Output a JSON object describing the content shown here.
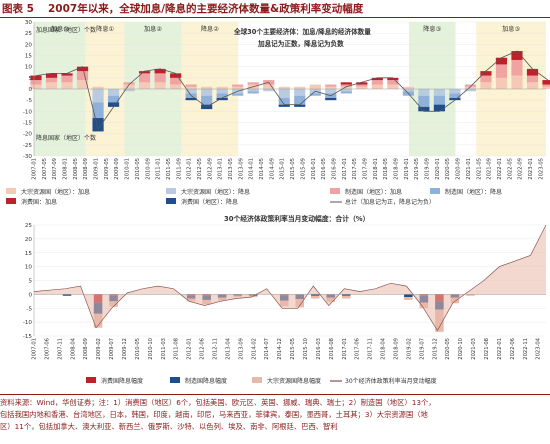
{
  "header": {
    "figure_no": "图表 5",
    "title": "2007年以来，全球加息/降息的主要经济体数量&政策利率变动幅度"
  },
  "source_note": [
    "资料来源：Wind，华创证券；注：1）消费国（地区）6个，包括美国、欧元区、英国、挪威、瑞典、瑞士；2）制造国（地区）13个，",
    "包括我国内地和香港、台湾地区，日本，韩国，印度，越南，印尼，马来西亚，菲律宾，泰国，墨西哥，土耳其；3）大宗资源国（地",
    "区）11个，包括加拿大、澳大利亚、新西兰、俄罗斯、沙特、以色列、埃及、南非、阿根廷、巴西、智利"
  ],
  "colors": {
    "shade_green": "#e4f2dc",
    "shade_yellow": "#fcf2d4",
    "hike_consumer": "#c0202a",
    "hike_manufacturing": "#f0a3a3",
    "hike_resource": "#f6c9b6",
    "cut_consumer": "#1f4e8c",
    "cut_manufacturing": "#8fb0d8",
    "cut_resource": "#b9cbe0",
    "net_line": "#555555",
    "bars_consumer": "#c0202a",
    "bars_manufacturing": "#1f4e8c",
    "bars_resource": "#e8b8a8",
    "policy_line": "#6b3030",
    "ann_text": "#8b1a1a"
  },
  "chart_data": [
    {
      "type": "bar",
      "subtype": "stacked-with-line",
      "x_range": [
        "2007-01",
        "2023-07"
      ],
      "x_ticks": [
        "2007-01",
        "2007-05",
        "2007-09",
        "2008-01",
        "2008-05",
        "2008-09",
        "2009-01",
        "2009-05",
        "2009-09",
        "2010-01",
        "2010-05",
        "2010-09",
        "2011-01",
        "2011-05",
        "2011-09",
        "2012-01",
        "2012-05",
        "2012-09",
        "2013-01",
        "2013-05",
        "2013-09",
        "2014-01",
        "2014-05",
        "2014-09",
        "2015-01",
        "2015-05",
        "2015-09",
        "2016-01",
        "2016-05",
        "2016-09",
        "2017-01",
        "2017-05",
        "2017-09",
        "2018-01",
        "2018-05",
        "2018-09",
        "2019-01",
        "2019-05",
        "2019-09",
        "2020-01",
        "2020-05",
        "2020-09",
        "2021-01",
        "2021-05",
        "2021-09",
        "2022-01",
        "2022-05",
        "2022-09",
        "2023-01",
        "2023-05"
      ],
      "y_ticks": [
        30,
        25,
        20,
        15,
        10,
        5,
        0,
        -5,
        -10,
        -15,
        -20,
        -25,
        -30
      ],
      "ylim": [
        -30,
        30
      ],
      "ylabel_top": "加息国家（地区）个数",
      "ylabel_bottom": "降息国家（地区）个数",
      "annotation": [
        "全球30个主要经济体：加息/降息的经济体数量",
        "加息记为正数，降息记为负数"
      ],
      "phases": [
        {
          "label": "加息①",
          "start": "2007-01",
          "end": "2008-09",
          "shade": "green"
        },
        {
          "label": "降息①",
          "start": "2008-09",
          "end": "2009-12",
          "shade": "yellow"
        },
        {
          "label": "加息②",
          "start": "2009-12",
          "end": "2011-10",
          "shade": "green"
        },
        {
          "label": "降息②",
          "start": "2011-10",
          "end": "2013-08",
          "shade": "yellow"
        },
        {
          "label": "降息③",
          "start": "2019-02",
          "end": "2020-08",
          "shade": "green"
        },
        {
          "label": "加息③",
          "start": "2021-04",
          "end": "2023-07",
          "shade": "yellow"
        }
      ],
      "series": [
        {
          "name": "大宗资源国（地区）：加息",
          "sample_dates": [
            "2007-01",
            "2007-07",
            "2008-01",
            "2008-07",
            "2009-01",
            "2009-07",
            "2010-01",
            "2010-07",
            "2011-01",
            "2011-07",
            "2012-01",
            "2012-07",
            "2013-01",
            "2013-07",
            "2014-01",
            "2014-07",
            "2015-01",
            "2015-07",
            "2016-01",
            "2016-07",
            "2017-01",
            "2017-07",
            "2018-01",
            "2018-07",
            "2019-01",
            "2019-07",
            "2020-01",
            "2020-07",
            "2021-01",
            "2021-07",
            "2022-01",
            "2022-07",
            "2023-01",
            "2023-07"
          ],
          "values": [
            2,
            3,
            3,
            4,
            1,
            0,
            2,
            3,
            3,
            2,
            1,
            1,
            1,
            1,
            2,
            2,
            1,
            1,
            2,
            1,
            1,
            1,
            2,
            2,
            1,
            0,
            0,
            0,
            1,
            3,
            5,
            6,
            3,
            1
          ]
        },
        {
          "name": "制造国（地区）：加息",
          "values": [
            2,
            2,
            3,
            4,
            0,
            0,
            1,
            4,
            4,
            3,
            1,
            0,
            0,
            1,
            1,
            2,
            0,
            0,
            0,
            1,
            1,
            1,
            2,
            2,
            0,
            0,
            0,
            0,
            1,
            3,
            6,
            7,
            3,
            1
          ]
        },
        {
          "name": "消费国：加息",
          "values": [
            2,
            2,
            1,
            2,
            0,
            0,
            0,
            1,
            2,
            2,
            0,
            0,
            0,
            0,
            0,
            0,
            0,
            0,
            0,
            0,
            1,
            1,
            1,
            1,
            0,
            0,
            0,
            0,
            0,
            2,
            3,
            4,
            3,
            2
          ]
        },
        {
          "name": "大宗资源国（地区）：降息",
          "values": [
            0,
            0,
            0,
            0,
            -6,
            -3,
            -1,
            0,
            0,
            0,
            -2,
            -3,
            -2,
            -2,
            -1,
            -1,
            -4,
            -3,
            -2,
            -2,
            -1,
            0,
            0,
            0,
            -1,
            -3,
            -3,
            -2,
            -1,
            0,
            0,
            0,
            0,
            0
          ]
        },
        {
          "name": "制造国（地区）：降息",
          "values": [
            0,
            0,
            0,
            0,
            -7,
            -3,
            0,
            0,
            0,
            0,
            -2,
            -4,
            -2,
            -1,
            -1,
            0,
            -3,
            -4,
            -1,
            -2,
            -1,
            0,
            0,
            0,
            -2,
            -5,
            -4,
            -2,
            0,
            0,
            0,
            0,
            0,
            0
          ]
        },
        {
          "name": "消费国（地区）：降息",
          "values": [
            0,
            0,
            0,
            0,
            -6,
            -2,
            0,
            0,
            0,
            0,
            -1,
            -2,
            -1,
            0,
            0,
            0,
            -1,
            -1,
            0,
            -1,
            0,
            0,
            0,
            0,
            0,
            -2,
            -3,
            -1,
            0,
            0,
            0,
            0,
            0,
            0
          ]
        },
        {
          "name": "总计（加息记为正，降息记为负）",
          "values": [
            6,
            7,
            7,
            10,
            -18,
            -8,
            2,
            8,
            9,
            7,
            -3,
            -8,
            -4,
            -1,
            1,
            3,
            -7,
            -7,
            -1,
            -3,
            1,
            3,
            5,
            5,
            -2,
            -10,
            -10,
            -5,
            1,
            8,
            14,
            17,
            9,
            4
          ]
        }
      ],
      "legend": [
        "大宗资源国（地区）：加息",
        "大宗资源国（地区）：降息",
        "制造国（地区）：加息",
        "制造国（地区）：降息",
        "消费国：加息",
        "消费国（地区）：降息",
        "总计（加息记为正，降息记为负）"
      ]
    },
    {
      "type": "bar",
      "subtype": "stacked-with-line",
      "title": "30个经济体政策利率当月变动幅度：合计（%）",
      "x_ticks": [
        "2007-01",
        "2007-06",
        "2007-11",
        "2008-04",
        "2008-09",
        "2009-02",
        "2009-07",
        "2009-12",
        "2010-05",
        "2010-10",
        "2011-03",
        "2011-08",
        "2012-01",
        "2012-06",
        "2012-11",
        "2013-04",
        "2013-09",
        "2014-02",
        "2014-07",
        "2014-12",
        "2015-05",
        "2015-10",
        "2016-03",
        "2016-08",
        "2017-01",
        "2017-06",
        "2017-11",
        "2018-04",
        "2018-09",
        "2019-02",
        "2019-07",
        "2019-12",
        "2020-05",
        "2020-10",
        "2021-03",
        "2021-08",
        "2022-01",
        "2022-06",
        "2022-11",
        "2023-04"
      ],
      "y_ticks": [
        25,
        20,
        15,
        10,
        5,
        0,
        -5,
        -10,
        -15
      ],
      "ylim": [
        -15,
        25
      ],
      "sample_dates": [
        "2007-01",
        "2007-07",
        "2008-01",
        "2008-07",
        "2009-01",
        "2009-07",
        "2010-01",
        "2010-07",
        "2011-01",
        "2011-07",
        "2012-01",
        "2012-07",
        "2013-01",
        "2013-07",
        "2014-01",
        "2014-07",
        "2015-01",
        "2015-07",
        "2016-01",
        "2016-07",
        "2017-01",
        "2017-07",
        "2018-01",
        "2018-07",
        "2019-01",
        "2019-07",
        "2020-01",
        "2020-07",
        "2021-01",
        "2021-07",
        "2022-01",
        "2022-07",
        "2023-01",
        "2023-07"
      ],
      "series": [
        {
          "name": "消费国降息幅度",
          "values": [
            0,
            0,
            0,
            0,
            -3,
            -0.5,
            0,
            0,
            0,
            0,
            -0.5,
            -0.5,
            -0.2,
            0,
            0,
            0,
            -0.3,
            -0.2,
            0,
            -0.2,
            0,
            0,
            0,
            0,
            0,
            -0.5,
            -2.5,
            -0.2,
            0,
            0,
            0,
            0,
            0,
            0
          ]
        },
        {
          "name": "制造国降息幅度",
          "values": [
            0,
            0,
            -0.5,
            0,
            -4,
            -2,
            0,
            0,
            0,
            0,
            -1,
            -1.5,
            -1,
            -0.5,
            -0.5,
            0,
            -2,
            -1.5,
            -0.5,
            -1,
            -0.5,
            0,
            0,
            0,
            -1,
            -2.5,
            -3,
            -1,
            0,
            0,
            0,
            0,
            0,
            0
          ]
        },
        {
          "name": "大宗资源国降息幅度",
          "values": [
            0,
            0,
            0,
            0,
            -5,
            -2,
            0,
            0,
            0,
            0,
            -1,
            -1.5,
            -1,
            -0.5,
            -0.5,
            0,
            -2,
            -3,
            -1,
            -1.5,
            -1,
            0,
            0,
            0,
            -1,
            -2,
            -8,
            -2,
            -0.5,
            0,
            0,
            0,
            0,
            0
          ]
        },
        {
          "name": "30个经济体政策利率当月变动幅度",
          "values": [
            1,
            1.5,
            2,
            3,
            -12,
            -5,
            0.5,
            2,
            3,
            2,
            -2.5,
            -4,
            -2.5,
            -1.5,
            -1,
            2,
            -5,
            -5,
            3,
            -4,
            2,
            1,
            2,
            4,
            3,
            -4,
            -13,
            -3,
            1,
            5,
            10,
            12,
            14,
            25
          ]
        }
      ],
      "legend": [
        "消费国降息幅度",
        "制造国降息幅度",
        "大宗资源国降息幅度",
        "30个经济体政策利率当月变动幅度"
      ]
    }
  ]
}
